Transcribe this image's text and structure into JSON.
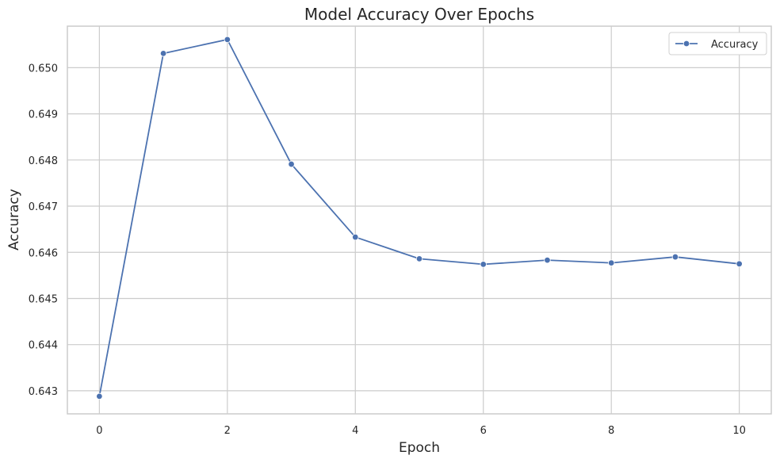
{
  "chart_data": {
    "type": "line",
    "title": "Model Accuracy Over Epochs",
    "xlabel": "Epoch",
    "ylabel": "Accuracy",
    "xlim": [
      -0.5,
      10.5
    ],
    "ylim": [
      0.6425,
      0.6509
    ],
    "xticks": [
      0,
      2,
      4,
      6,
      8,
      10
    ],
    "xtick_labels": [
      "0",
      "2",
      "4",
      "6",
      "8",
      "10"
    ],
    "yticks": [
      0.643,
      0.644,
      0.645,
      0.646,
      0.647,
      0.648,
      0.649,
      0.65
    ],
    "ytick_labels": [
      "0.643",
      "0.644",
      "0.645",
      "0.646",
      "0.647",
      "0.648",
      "0.649",
      "0.650"
    ],
    "grid": true,
    "legend_position": "top-right",
    "series": [
      {
        "name": "Accuracy",
        "color": "#4c72b0",
        "marker": "circle",
        "x": [
          0,
          1,
          2,
          3,
          4,
          5,
          6,
          7,
          8,
          9,
          10
        ],
        "y": [
          0.64288,
          0.65031,
          0.65061,
          0.64791,
          0.64633,
          0.64586,
          0.64574,
          0.64583,
          0.64577,
          0.6459,
          0.64575
        ]
      }
    ]
  }
}
